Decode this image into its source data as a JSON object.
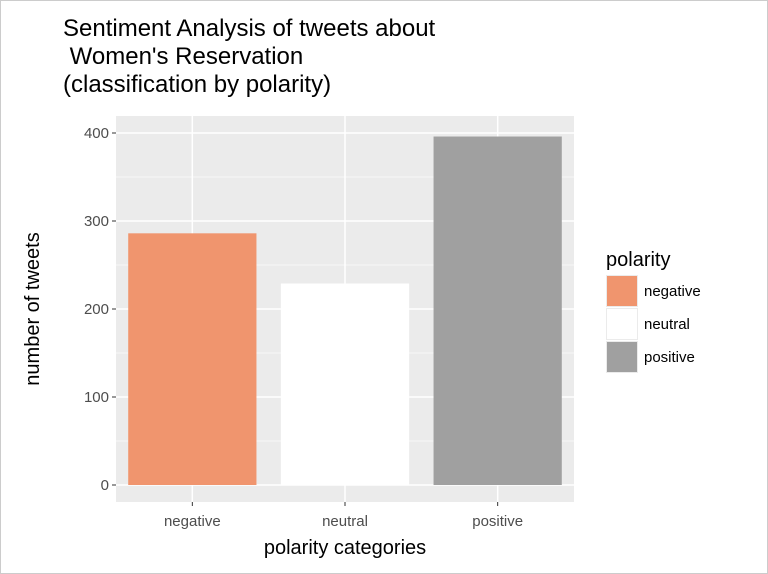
{
  "chart_data": {
    "type": "bar",
    "title": "Sentiment Analysis of tweets about\n Women's Reservation\n(classification by polarity)",
    "xlabel": "polarity categories",
    "ylabel": "number of tweets",
    "categories": [
      "negative",
      "neutral",
      "positive"
    ],
    "values": [
      286,
      229,
      396
    ],
    "colors": [
      "#F0956E",
      "#FFFFFF",
      "#A0A0A0"
    ],
    "ylim": [
      0,
      400
    ],
    "yticks": [
      0,
      100,
      200,
      300,
      400
    ],
    "grid": true,
    "panel_background": "#EBEBEB",
    "legend": {
      "title": "polarity",
      "placement": "right",
      "entries": [
        "negative",
        "neutral",
        "positive"
      ]
    }
  }
}
